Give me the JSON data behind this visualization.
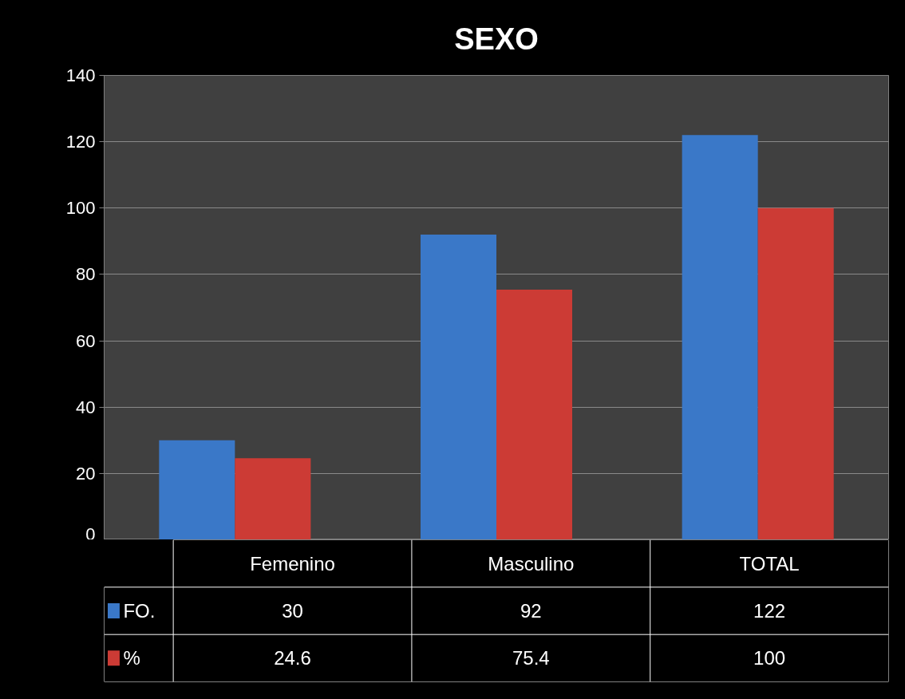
{
  "chart_data": {
    "type": "bar",
    "title": "SEXO",
    "categories": [
      "Femenino",
      "Masculino",
      "TOTAL"
    ],
    "series": [
      {
        "name": "FO.",
        "color": "#3a78c8",
        "values": [
          30,
          92,
          122
        ]
      },
      {
        "name": "%",
        "color": "#cc3b35",
        "values": [
          24.6,
          75.4,
          100
        ]
      }
    ],
    "ylim": [
      0,
      140
    ],
    "yticks": [
      0,
      20,
      40,
      60,
      80,
      100,
      120,
      140
    ],
    "grid": "y",
    "legend": "bottom left",
    "data_labels": true
  }
}
